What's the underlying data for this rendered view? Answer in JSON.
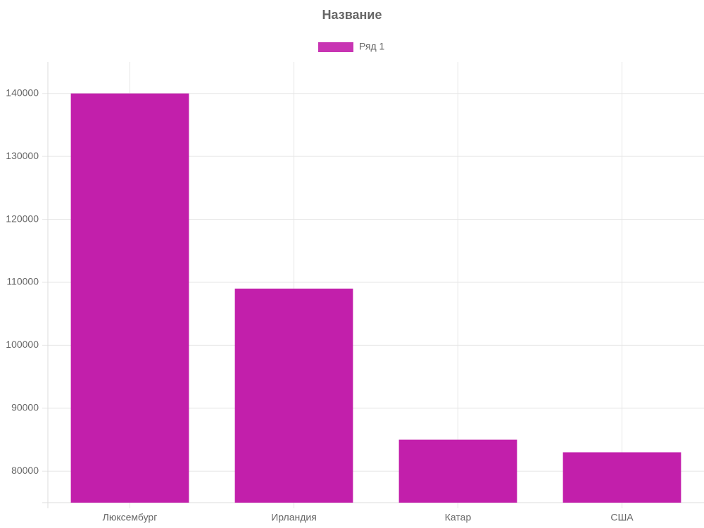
{
  "chart_data": {
    "type": "bar",
    "title": "Название",
    "categories": [
      "Люксембург",
      "Ирландия",
      "Катар",
      "США"
    ],
    "series": [
      {
        "name": "Ряд 1",
        "color": "#c21fab",
        "values": [
          140000,
          109000,
          85000,
          83000
        ]
      }
    ],
    "ylim": [
      75000,
      145000
    ],
    "yticks": [
      80000,
      90000,
      100000,
      110000,
      120000,
      130000,
      140000
    ],
    "grid": true,
    "legend": "top"
  }
}
